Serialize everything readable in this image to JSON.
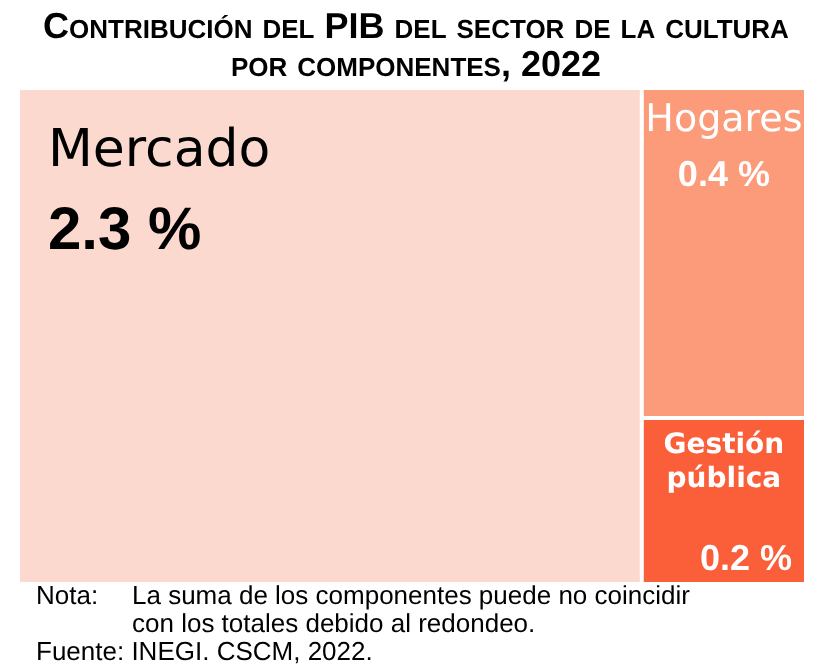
{
  "chart_data": {
    "type": "other",
    "title": "Contribución del PIB del sector de la cultura por componentes, 2022",
    "categories": [
      "Mercado",
      "Hogares",
      "Gestión pública"
    ],
    "values": [
      2.3,
      0.4,
      0.2
    ],
    "colors": [
      "#fbd9cf",
      "#fb9b7a",
      "#fb5f3a"
    ],
    "value_labels": [
      "2.3 %",
      "0.4 %",
      "0.2 %"
    ],
    "annotations": [
      "Nota:\tLa suma de los componentes puede no coincidir con los totales debido al redondeo.",
      "Fuente: INEGI. CSCM, 2022."
    ]
  }
}
